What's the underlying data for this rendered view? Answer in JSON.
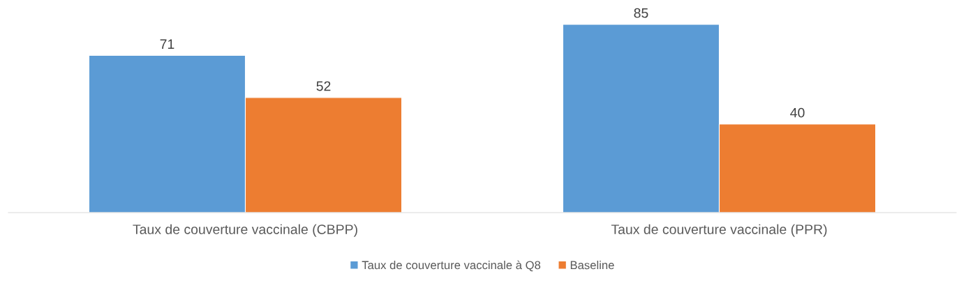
{
  "chart_data": {
    "type": "bar",
    "categories": [
      "Taux de couverture vaccinale (CBPP)",
      "Taux de couverture vaccinale (PPR)"
    ],
    "series": [
      {
        "name": "Taux de couverture vaccinale à Q8",
        "color": "#5b9bd5",
        "values": [
          71,
          85
        ]
      },
      {
        "name": "Baseline",
        "color": "#ed7d31",
        "values": [
          52,
          40
        ]
      }
    ],
    "data_labels": true,
    "legend": "bottom",
    "grid": false
  }
}
